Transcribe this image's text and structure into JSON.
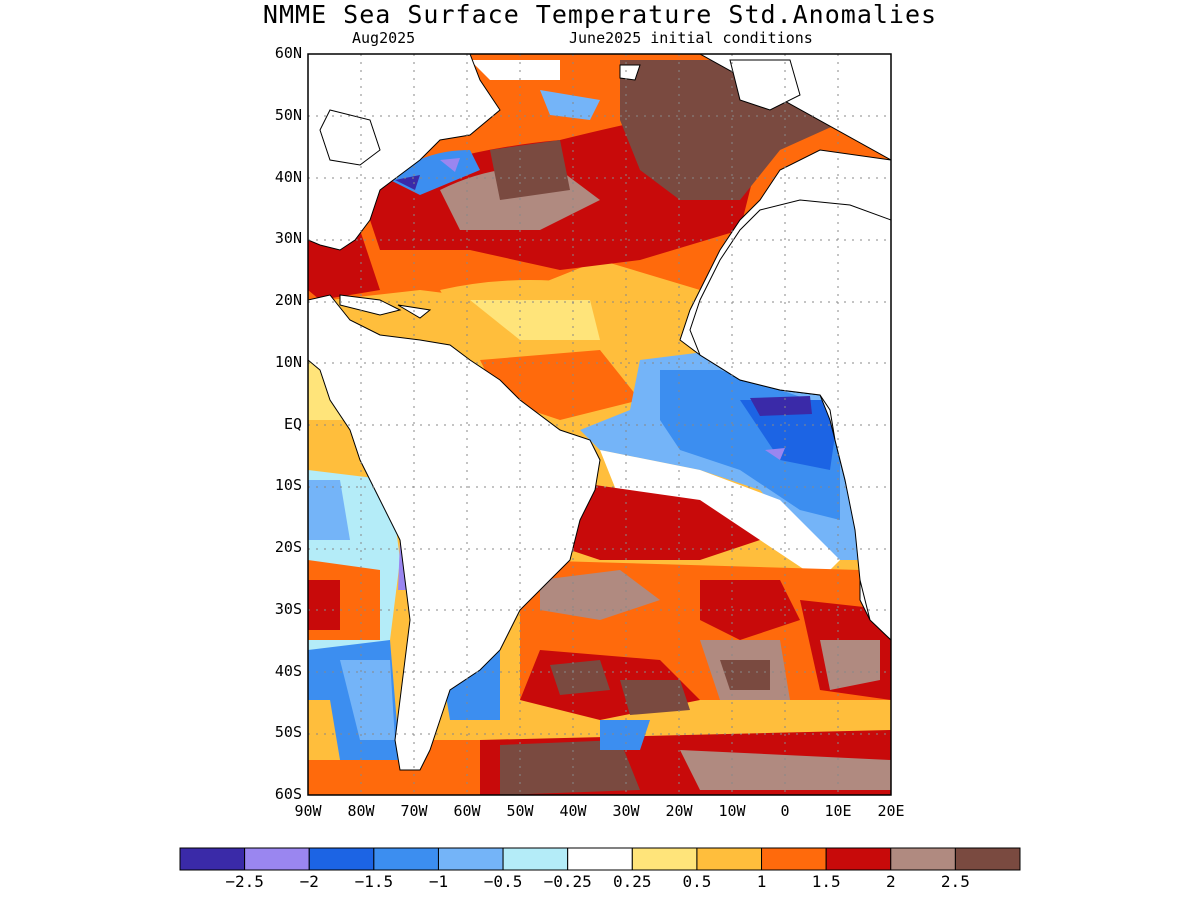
{
  "header": {
    "title": "NMME Sea Surface Temperature Std.Anomalies",
    "valid_month": "Aug2025",
    "initial_conditions": "June2025 initial conditions"
  },
  "map": {
    "region": "Atlantic Ocean",
    "lon_range": [
      -90,
      20
    ],
    "lat_range": [
      -60,
      60
    ],
    "lat_labels": [
      "60N",
      "50N",
      "40N",
      "30N",
      "20N",
      "10N",
      "EQ",
      "10S",
      "20S",
      "30S",
      "40S",
      "50S",
      "60S"
    ],
    "lon_labels": [
      "90W",
      "80W",
      "70W",
      "60W",
      "50W",
      "40W",
      "30W",
      "20W",
      "10W",
      "0",
      "10E",
      "20E"
    ],
    "grid": "dotted",
    "land_color": "#ffffff"
  },
  "colorbar": {
    "colors": [
      "#3a2aa8",
      "#9a86f0",
      "#1c64e4",
      "#3c8ef0",
      "#74b4f8",
      "#b4ecf8",
      "#ffffff",
      "#ffe47a",
      "#ffbe3c",
      "#ff6a0c",
      "#c80a0a",
      "#b08a80",
      "#7a4a40"
    ],
    "labels": [
      "−2.5",
      "−2",
      "−1.5",
      "−1",
      "−0.5",
      "−0.25",
      "0.25",
      "0.5",
      "1",
      "1.5",
      "2",
      "2.5"
    ]
  },
  "features": [
    {
      "name": "north-atlantic-warm-core",
      "value": 2.5
    },
    {
      "name": "gulf-stream-region",
      "value": 2.0
    },
    {
      "name": "subtropical-north-atlantic",
      "value": 0.5
    },
    {
      "name": "equatorial-cold-tongue",
      "value": -1.5
    },
    {
      "name": "gulf-of-guinea-cold-core",
      "value": -2.5
    },
    {
      "name": "south-atlantic-warm-band",
      "value": 2.0
    },
    {
      "name": "southern-ocean-warm",
      "value": 2.5
    },
    {
      "name": "chile-coast-cold",
      "value": -1.0
    },
    {
      "name": "patagonia-shelf-cold",
      "value": -1.0
    }
  ]
}
